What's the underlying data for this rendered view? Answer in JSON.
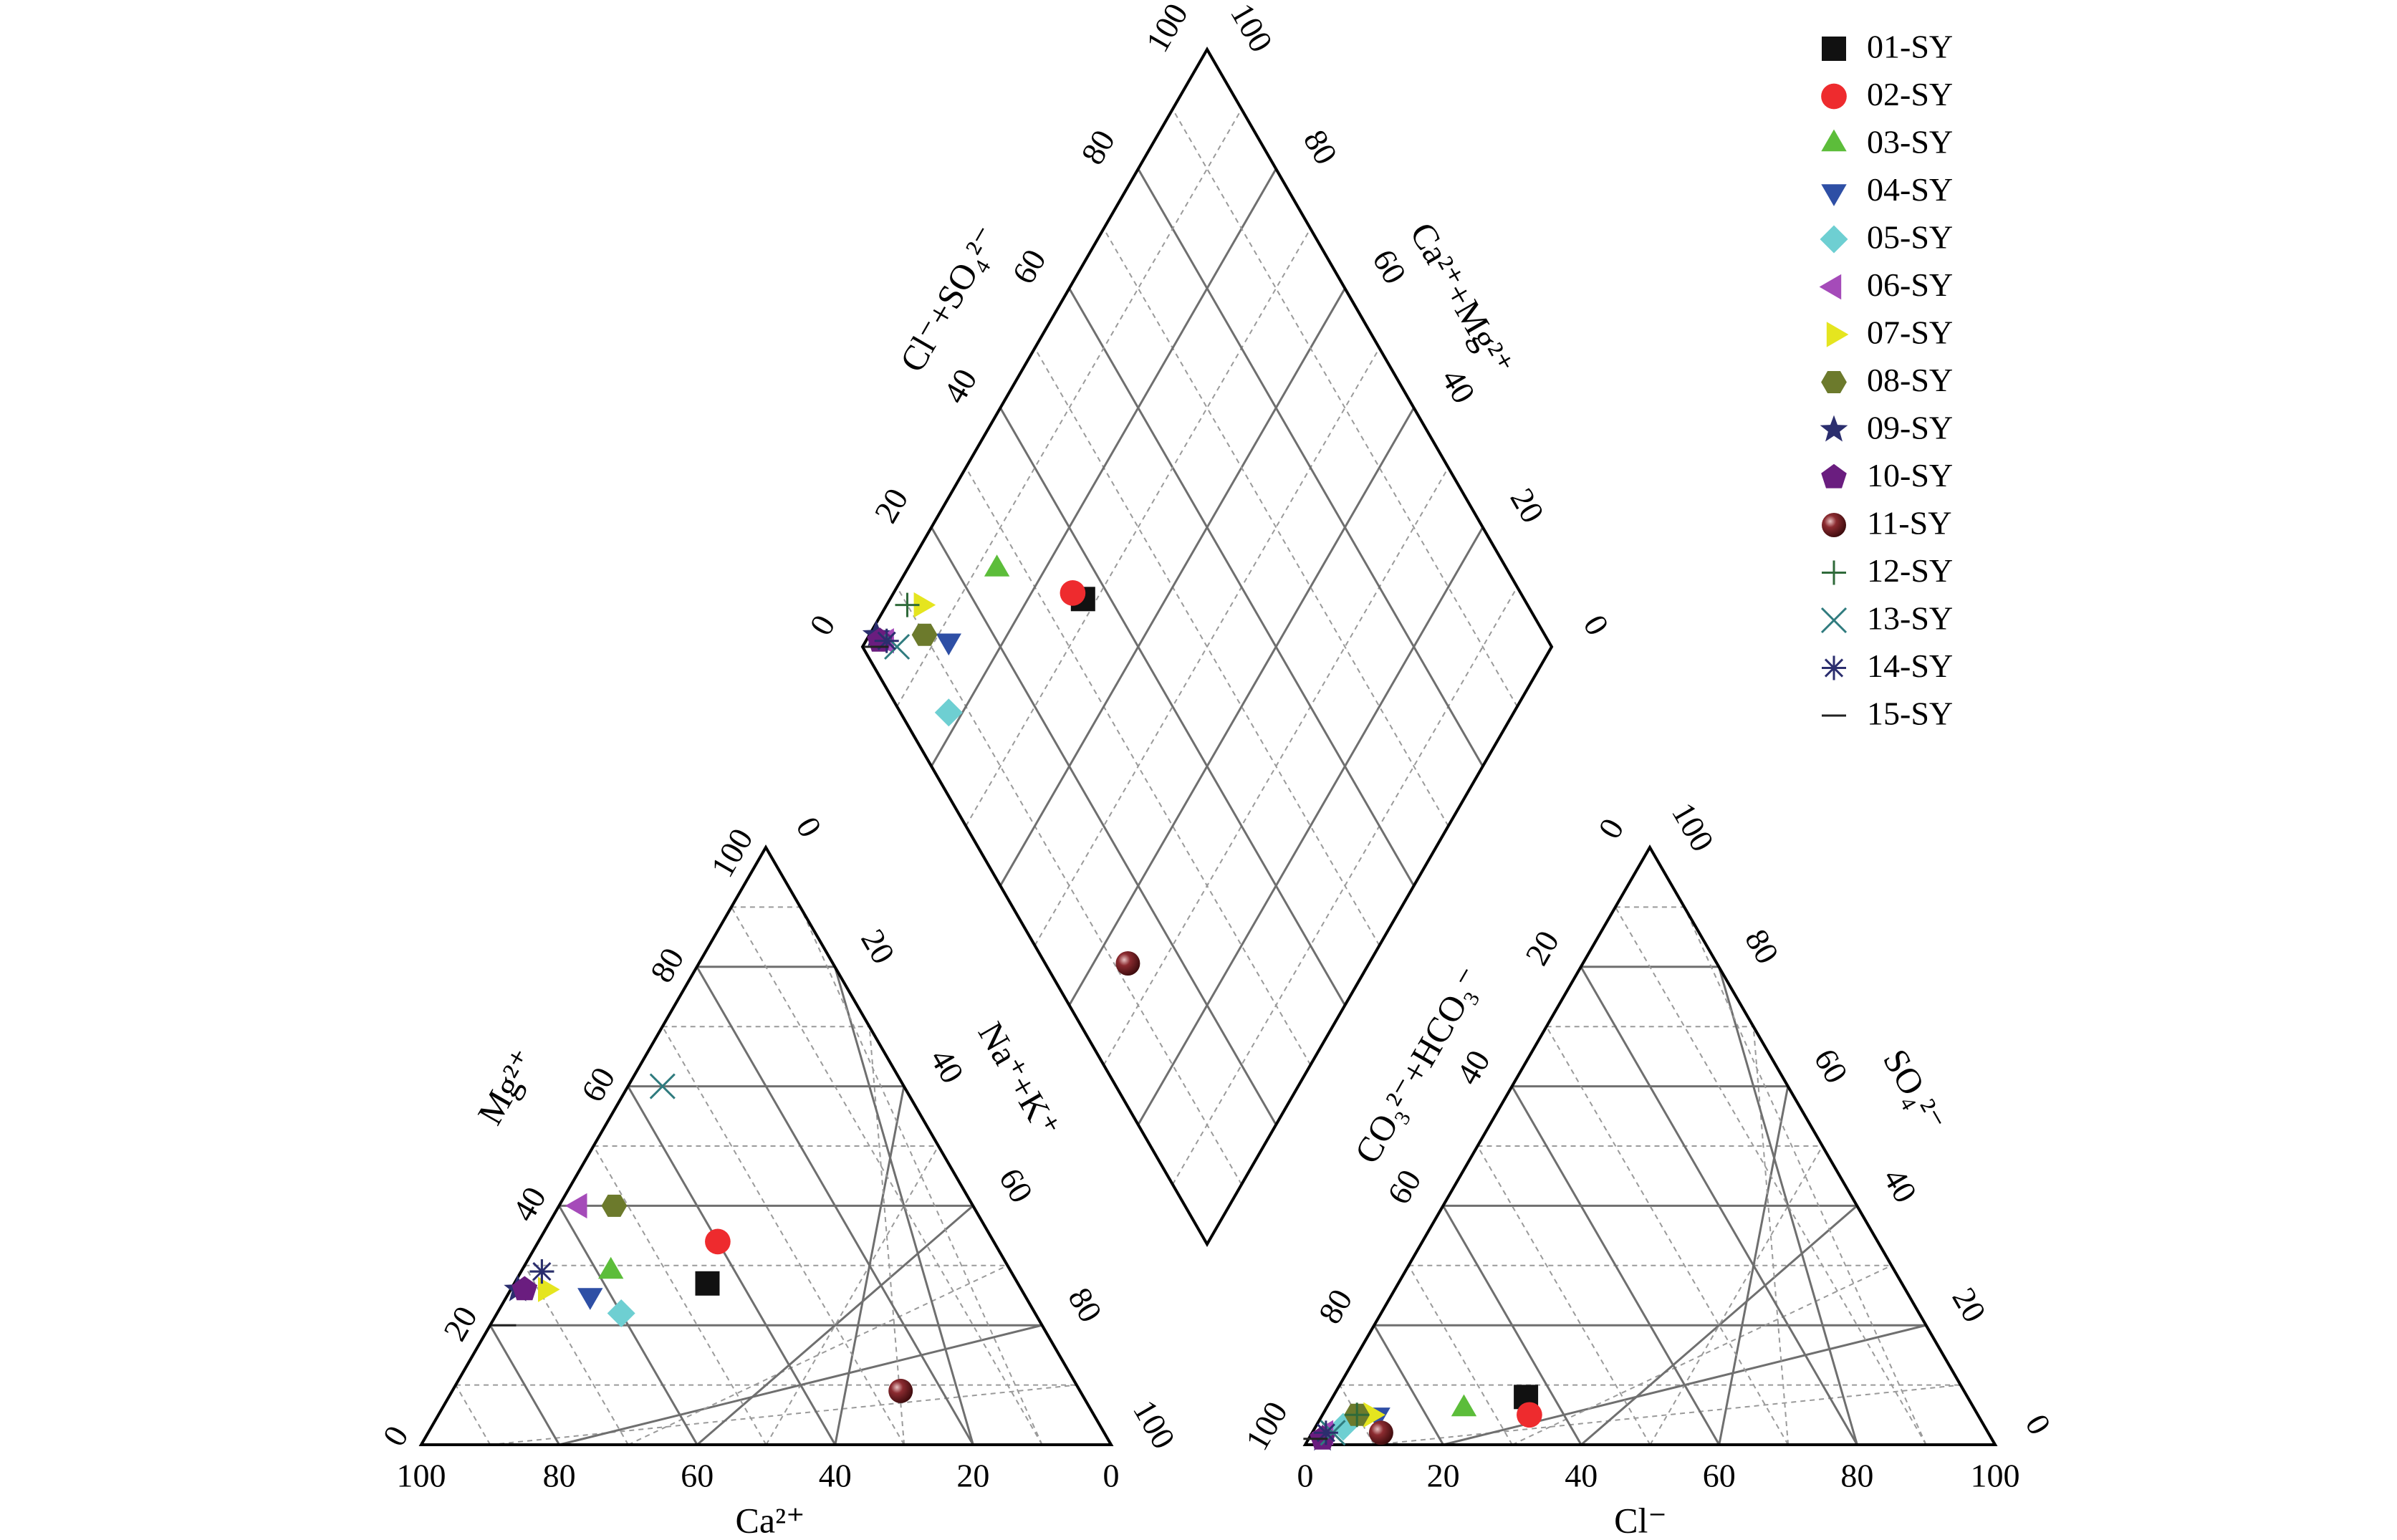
{
  "chart_data": {
    "type": "scatter",
    "subtype": "piper-diagram",
    "axis_labels": {
      "cation_bottom": "Ca²⁺",
      "cation_left": "Mg²⁺",
      "cation_right": "Na⁺+K⁺",
      "anion_bottom": "Cl⁻",
      "anion_left": "CO₃²⁻+HCO₃⁻",
      "anion_right": "SO₄²⁻",
      "diamond_left": "Cl⁻+SO₄²⁻",
      "diamond_right": "Ca²⁺+Mg²⁺"
    },
    "tick_labels": [
      "0",
      "20",
      "40",
      "60",
      "80",
      "100"
    ],
    "grid": true,
    "legend_position": "top-right",
    "series": [
      {
        "name": "01-SY",
        "marker": "square",
        "color": "#111111",
        "ca": 45,
        "mg": 27,
        "na_k": 28,
        "cl": 28,
        "hco3_co3": 64,
        "so4": 8
      },
      {
        "name": "02-SY",
        "marker": "circle",
        "color": "#ee2b2e",
        "ca": 40,
        "mg": 34,
        "na_k": 26,
        "cl": 30,
        "hco3_co3": 65,
        "so4": 5
      },
      {
        "name": "03-SY",
        "marker": "triangle-up",
        "color": "#5cbd3a",
        "ca": 58,
        "mg": 29,
        "na_k": 13,
        "cl": 20,
        "hco3_co3": 74,
        "so4": 6
      },
      {
        "name": "04-SY",
        "marker": "triangle-down",
        "color": "#2e4fa5",
        "ca": 63,
        "mg": 25,
        "na_k": 12,
        "cl": 8,
        "hco3_co3": 87,
        "so4": 5
      },
      {
        "name": "05-SY",
        "marker": "diamond",
        "color": "#6ecfd2",
        "ca": 60,
        "mg": 22,
        "na_k": 18,
        "cl": 4,
        "hco3_co3": 93,
        "so4": 3
      },
      {
        "name": "06-SY",
        "marker": "triangle-left",
        "color": "#a54bb9",
        "ca": 57,
        "mg": 40,
        "na_k": 3,
        "cl": 2,
        "hco3_co3": 96,
        "so4": 2
      },
      {
        "name": "07-SY",
        "marker": "triangle-right",
        "color": "#e5e51f",
        "ca": 69,
        "mg": 26,
        "na_k": 5,
        "cl": 7,
        "hco3_co3": 88,
        "so4": 5
      },
      {
        "name": "08-SY",
        "marker": "hexagon",
        "color": "#6c7a2c",
        "ca": 52,
        "mg": 40,
        "na_k": 8,
        "cl": 5,
        "hco3_co3": 90,
        "so4": 5
      },
      {
        "name": "09-SY",
        "marker": "star",
        "color": "#2b2e6e",
        "ca": 73,
        "mg": 26,
        "na_k": 1,
        "cl": 2,
        "hco3_co3": 97,
        "so4": 1
      },
      {
        "name": "10-SY",
        "marker": "pentagon",
        "color": "#6a1d7f",
        "ca": 72,
        "mg": 26,
        "na_k": 2,
        "cl": 2,
        "hco3_co3": 97,
        "so4": 1
      },
      {
        "name": "11-SY",
        "marker": "sphere",
        "color": "#6b1a1e",
        "ca": 26,
        "mg": 9,
        "na_k": 65,
        "cl": 10,
        "hco3_co3": 88,
        "so4": 2
      },
      {
        "name": "12-SY",
        "marker": "plus",
        "color": "#2f6a3a",
        "ca": 68,
        "mg": 29,
        "na_k": 3,
        "cl": 5,
        "hco3_co3": 90,
        "so4": 5
      },
      {
        "name": "13-SY",
        "marker": "x",
        "color": "#2f7b7e",
        "ca": 35,
        "mg": 60,
        "na_k": 5,
        "cl": 3,
        "hco3_co3": 95,
        "so4": 2
      },
      {
        "name": "14-SY",
        "marker": "asterisk",
        "color": "#2b2e6e",
        "ca": 68,
        "mg": 29,
        "na_k": 3,
        "cl": 2,
        "hco3_co3": 96,
        "so4": 2
      },
      {
        "name": "15-SY",
        "marker": "dash",
        "color": "#222222",
        "ca": 78,
        "mg": 20,
        "na_k": 2,
        "cl": 1,
        "hco3_co3": 98,
        "so4": 1
      }
    ]
  }
}
